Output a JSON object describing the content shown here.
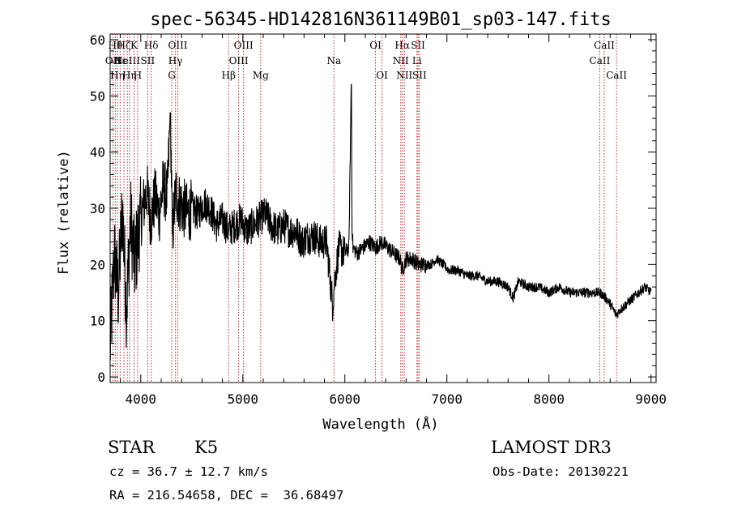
{
  "chart_data": {
    "type": "line",
    "title": "spec-56345-HD142816N361149B01_sp03-147.fits",
    "xlabel": "Wavelength (Å)",
    "ylabel": "Flux (relative)",
    "xlim": [
      3700,
      9050
    ],
    "ylim": [
      -1,
      61
    ],
    "xticks": [
      4000,
      5000,
      6000,
      7000,
      8000,
      9000
    ],
    "yticks": [
      0,
      10,
      20,
      30,
      40,
      50,
      60
    ],
    "series": [
      {
        "name": "spectrum",
        "color": "#000000",
        "x": [
          3700,
          3740,
          3780,
          3820,
          3860,
          3900,
          3940,
          3980,
          4020,
          4060,
          4100,
          4140,
          4180,
          4220,
          4260,
          4290,
          4310,
          4340,
          4380,
          4420,
          4460,
          4500,
          4560,
          4620,
          4680,
          4740,
          4800,
          4860,
          4920,
          4980,
          5040,
          5100,
          5160,
          5220,
          5280,
          5340,
          5400,
          5460,
          5520,
          5580,
          5640,
          5700,
          5760,
          5820,
          5880,
          5900,
          5940,
          6000,
          6040,
          6062,
          6070,
          6080,
          6120,
          6180,
          6240,
          6300,
          6360,
          6420,
          6480,
          6540,
          6563,
          6600,
          6660,
          6720,
          6780,
          6840,
          6900,
          6960,
          7020,
          7100,
          7200,
          7300,
          7400,
          7500,
          7600,
          7650,
          7700,
          7800,
          7900,
          8000,
          8100,
          8200,
          8300,
          8400,
          8500,
          8560,
          8600,
          8660,
          8700,
          8760,
          8820,
          8880,
          8940,
          9000
        ],
        "y": [
          5,
          22,
          15,
          30,
          12,
          28,
          20,
          26,
          30,
          33,
          28,
          32,
          29,
          34,
          32,
          47,
          25,
          33,
          31,
          30,
          29,
          30,
          29,
          31,
          30,
          27,
          28,
          26,
          27,
          28,
          26,
          27,
          28,
          29,
          27,
          26,
          27,
          26,
          26,
          24,
          25,
          25,
          24,
          24,
          13,
          17,
          23,
          22,
          23,
          52,
          27,
          23,
          22,
          23,
          24,
          23,
          24,
          23,
          22,
          21,
          19,
          21,
          21,
          20,
          20,
          20,
          21,
          20,
          19,
          19,
          18,
          18,
          17,
          17,
          16,
          14,
          17,
          16,
          16,
          15,
          16,
          15,
          15,
          15,
          15,
          14,
          13,
          11,
          12,
          13,
          14,
          15,
          16,
          15
        ]
      }
    ],
    "lines": [
      {
        "wl": 3727,
        "label": "OII",
        "row": 1
      },
      {
        "wl": 3750,
        "label": "Hθ",
        "row": 0
      },
      {
        "wl": 3771,
        "label": "Hη",
        "row": 2
      },
      {
        "wl": 3798,
        "label": "Hε",
        "row": 1
      },
      {
        "wl": 3835,
        "label": "Hζ",
        "row": 0
      },
      {
        "wl": 3868,
        "label": "NeIII",
        "row": 1
      },
      {
        "wl": 3889,
        "label": "Hη",
        "row": 2
      },
      {
        "wl": 3934,
        "label": "K",
        "row": 0
      },
      {
        "wl": 3969,
        "label": "H",
        "row": 2
      },
      {
        "wl": 4068,
        "label": "SII",
        "row": 1
      },
      {
        "wl": 4102,
        "label": "Hδ",
        "row": 0
      },
      {
        "wl": 4304,
        "label": "G",
        "row": 2
      },
      {
        "wl": 4340,
        "label": "Hγ",
        "row": 1
      },
      {
        "wl": 4363,
        "label": "OIII",
        "row": 0
      },
      {
        "wl": 4861,
        "label": "Hβ",
        "row": 2
      },
      {
        "wl": 4959,
        "label": "OIII",
        "row": 1
      },
      {
        "wl": 5007,
        "label": "OIII",
        "row": 0
      },
      {
        "wl": 5175,
        "label": "Mg",
        "row": 2
      },
      {
        "wl": 5893,
        "label": "Na",
        "row": 1
      },
      {
        "wl": 6300,
        "label": "OI",
        "row": 0
      },
      {
        "wl": 6364,
        "label": "OI",
        "row": 2
      },
      {
        "wl": 6548,
        "label": "NII",
        "row": 1
      },
      {
        "wl": 6563,
        "label": "Hα",
        "row": 0
      },
      {
        "wl": 6583,
        "label": "NII",
        "row": 2
      },
      {
        "wl": 6707,
        "label": "Li",
        "row": 1
      },
      {
        "wl": 6717,
        "label": "SII",
        "row": 0
      },
      {
        "wl": 6731,
        "label": "SII",
        "row": 2
      },
      {
        "wl": 8498,
        "label": "CaII",
        "row": 1
      },
      {
        "wl": 8542,
        "label": "CaII",
        "row": 0
      },
      {
        "wl": 8662,
        "label": "CaII",
        "row": 2
      }
    ],
    "line_color": "#b03030"
  },
  "info": {
    "object_class": "STAR",
    "subclass": "K5",
    "survey": "LAMOST DR3",
    "cz": "cz = 36.7 ± 12.7 km/s",
    "obs_date": "Obs-Date: 20130221",
    "coords": "RA = 216.54658, DEC =  36.68497"
  }
}
